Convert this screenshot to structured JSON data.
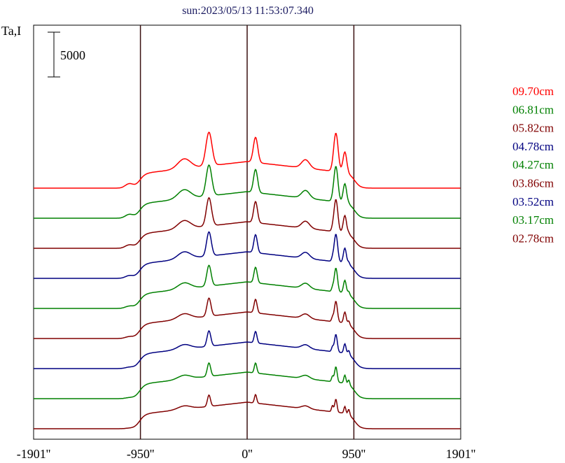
{
  "chart_data": {
    "type": "line",
    "title": "sun:2023/05/13 11:53:07.340",
    "ylabel": "Ta,I",
    "scale_bar_label": "5000",
    "x_tick_labels": [
      "-1901''",
      "-950''",
      "0''",
      "950''",
      "1901''"
    ],
    "x_ticks": [
      -1901,
      -950,
      0,
      950,
      1901
    ],
    "xlim": [
      -1901,
      1901
    ],
    "vertical_lines": [
      -950,
      0,
      950
    ],
    "grid": false,
    "legend_position": "right",
    "series": [
      {
        "name": "09.70cm",
        "color": "#ff0000",
        "offset": 9,
        "peak_scale": 1.0,
        "sharp": 0.0
      },
      {
        "name": "06.81cm",
        "color": "#008000",
        "offset": 8,
        "peak_scale": 0.92,
        "sharp": 0.15
      },
      {
        "name": "05.82cm",
        "color": "#800000",
        "offset": 7,
        "peak_scale": 0.84,
        "sharp": 0.25
      },
      {
        "name": "04.78cm",
        "color": "#000080",
        "offset": 6,
        "peak_scale": 0.72,
        "sharp": 0.4
      },
      {
        "name": "04.27cm",
        "color": "#008000",
        "offset": 5,
        "peak_scale": 0.62,
        "sharp": 0.5
      },
      {
        "name": "03.86cm",
        "color": "#800000",
        "offset": 4,
        "peak_scale": 0.54,
        "sharp": 0.6
      },
      {
        "name": "03.52cm",
        "color": "#000080",
        "offset": 3,
        "peak_scale": 0.46,
        "sharp": 0.7
      },
      {
        "name": "03.17cm",
        "color": "#008000",
        "offset": 2,
        "peak_scale": 0.4,
        "sharp": 0.8
      },
      {
        "name": "02.78cm",
        "color": "#800000",
        "offset": 1,
        "peak_scale": 0.34,
        "sharp": 0.9
      }
    ]
  }
}
